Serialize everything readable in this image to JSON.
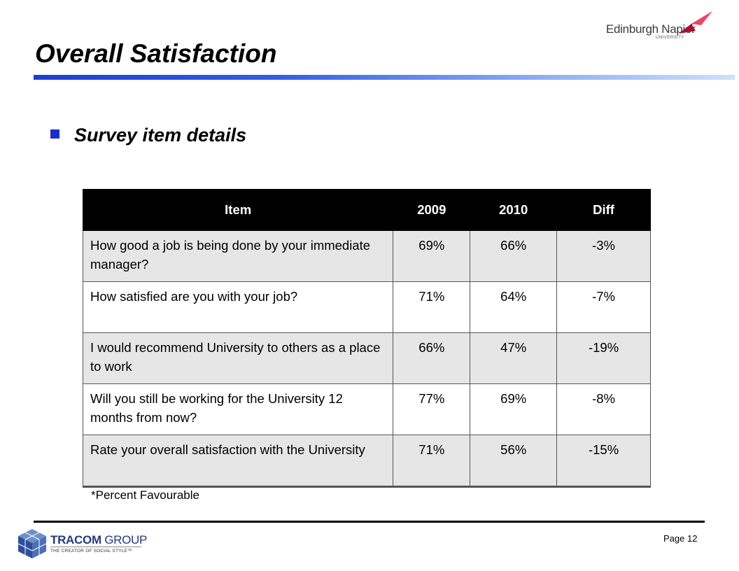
{
  "page": {
    "title": "Overall Satisfaction",
    "subtitle": "Survey item details",
    "footnote": "*Percent Favourable",
    "page_number": "Page 12"
  },
  "logos": {
    "napier_name": "Edinburgh Napier",
    "napier_sub": "UNIVERSITY",
    "tracom_brand_bold": "TRACOM",
    "tracom_brand_light": " GROUP",
    "tracom_tagline": "THE CREATOR OF SOCIAL STYLE™"
  },
  "table": {
    "headers": [
      "Item",
      "2009",
      "2010",
      "Diff"
    ],
    "rows": [
      {
        "item": "How good a job is being done by your immediate manager?",
        "y2009": "69%",
        "y2010": "66%",
        "diff": "-3%"
      },
      {
        "item": "How satisfied are you with your job?",
        "y2009": "71%",
        "y2010": "64%",
        "diff": "-7%"
      },
      {
        "item": "I would recommend University to others as a place to work",
        "y2009": "66%",
        "y2010": "47%",
        "diff": "-19%"
      },
      {
        "item": "Will you still be working for the University 12 months from now?",
        "y2009": "77%",
        "y2010": "69%",
        "diff": "-8%"
      },
      {
        "item": "Rate your overall satisfaction with the University",
        "y2009": "71%",
        "y2010": "56%",
        "diff": "-15%"
      }
    ]
  },
  "colors": {
    "accent_blue": "#1c2dcc",
    "header_bg": "#000000",
    "row_shade": "#e6e6e6",
    "napier_red": "#d4143c"
  }
}
